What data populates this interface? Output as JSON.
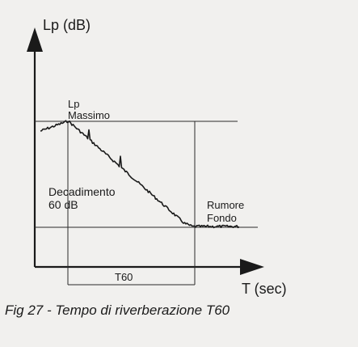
{
  "axes": {
    "y_label": "Lp (dB)",
    "x_label": "T (sec)"
  },
  "annotations": {
    "peak_line1": "Lp",
    "peak_line2": "Massimo",
    "decay_line1": "Decadimento",
    "decay_line2": "60 dB",
    "noise_line1": "Rumore",
    "noise_line2": "Fondo",
    "span_label": "T60"
  },
  "caption": "Fig 27 - Tempo di riverberazione T60",
  "colors": {
    "ink": "#1a1a1a",
    "background": "#f1f0ee"
  }
}
